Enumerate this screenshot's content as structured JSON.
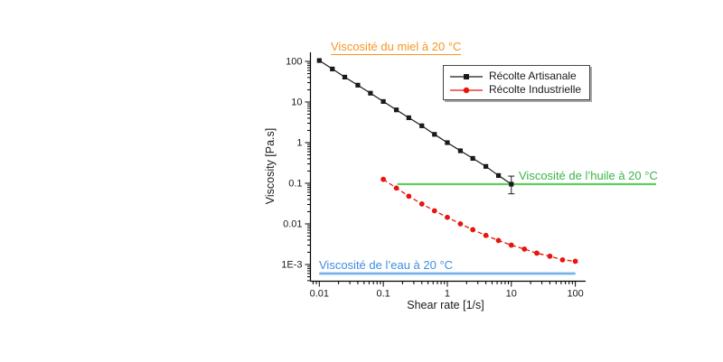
{
  "page": {
    "background": "#ffffff"
  },
  "axis": {
    "x_title": "Shear rate [1/s]",
    "y_title": "Viscosity [Pa.s]",
    "x_tick_labels": [
      "0.01",
      "0.1",
      "1",
      "10",
      "100"
    ],
    "x_tick_values": [
      0.01,
      0.1,
      1,
      10,
      100
    ],
    "y_tick_labels": [
      "100",
      "10",
      "1",
      "0.1",
      "0.01",
      "1E-3"
    ],
    "y_tick_values": [
      100,
      10,
      1,
      0.1,
      0.01,
      0.001
    ]
  },
  "legend": {
    "entries": [
      {
        "label": "Récolte Artisanale",
        "marker": "square",
        "color": "#1a1a1a"
      },
      {
        "label": "Récolte Industrielle",
        "marker": "circle",
        "color": "#e8140e"
      }
    ]
  },
  "annotations": {
    "honey": {
      "text": "Viscosité du miel à 20 °C",
      "color": "#f59822",
      "underline": true
    },
    "oil": {
      "text": "Viscosité de l’huile à 20 °C",
      "color": "#3cb44a"
    },
    "water": {
      "text": "Viscosité de l’eau à 20 °C",
      "color": "#3d8ee0"
    }
  },
  "chart_data": {
    "type": "line",
    "title": "",
    "xlabel": "Shear rate [1/s]",
    "ylabel": "Viscosity [Pa.s]",
    "x_scale": "log",
    "y_scale": "log",
    "xlim": [
      0.0072,
      148
    ],
    "ylim": [
      0.00042,
      160
    ],
    "grid": false,
    "legend_position": "top-right",
    "series": [
      {
        "name": "Récolte Artisanale",
        "color": "#1a1a1a",
        "marker": "square",
        "line_style": "solid",
        "x": [
          0.01,
          0.016,
          0.025,
          0.04,
          0.063,
          0.1,
          0.16,
          0.25,
          0.4,
          0.63,
          1,
          1.6,
          2.5,
          4,
          6.3,
          10
        ],
        "y": [
          105,
          65,
          41,
          26,
          16.5,
          10.3,
          6.4,
          4.1,
          2.6,
          1.6,
          1.0,
          0.63,
          0.41,
          0.26,
          0.155,
          0.095
        ],
        "error_bar_last": {
          "x": 10,
          "y_low": 0.055,
          "y_high": 0.15
        }
      },
      {
        "name": "Récolte Industrielle",
        "color": "#e8140e",
        "marker": "circle",
        "line_style": "dashed",
        "x": [
          0.1,
          0.16,
          0.25,
          0.4,
          0.63,
          1,
          1.6,
          2.5,
          4,
          6.3,
          10,
          16,
          25,
          40,
          63,
          100
        ],
        "y": [
          0.125,
          0.076,
          0.048,
          0.031,
          0.021,
          0.0145,
          0.01,
          0.0072,
          0.0052,
          0.0039,
          0.003,
          0.0024,
          0.0019,
          0.0016,
          0.0013,
          0.0012
        ]
      }
    ],
    "reference_lines": [
      {
        "name": "oil",
        "label": "Viscosité de l’huile à 20 °C",
        "value": 0.095,
        "color": "#5ecf5e",
        "x_from": 0.165,
        "extends_past_right_axis": true
      },
      {
        "name": "water",
        "label": "Viscosité de l’eau à 20 °C",
        "value": 0.0006,
        "color": "#78b0ea",
        "x_from": 0.01,
        "x_to": 100
      }
    ]
  }
}
